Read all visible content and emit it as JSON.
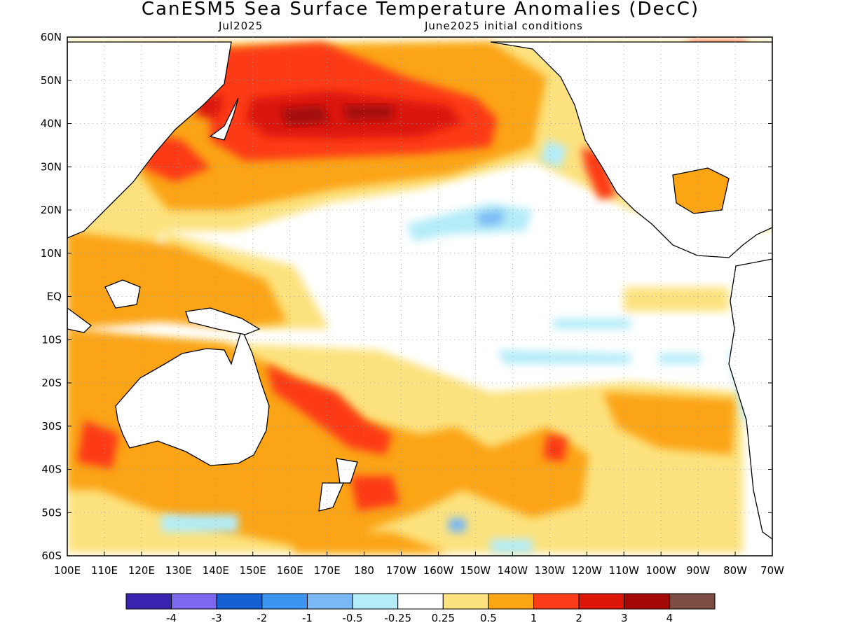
{
  "title": "CanESM5 Sea Surface Temperature Anomalies (DecC)",
  "subtitle_left": "Jul2025",
  "subtitle_right": "June2025 initial conditions",
  "lat_labels": [
    "60N",
    "50N",
    "40N",
    "30N",
    "20N",
    "10N",
    "EQ",
    "10S",
    "20S",
    "30S",
    "40S",
    "50S",
    "60S"
  ],
  "lon_labels": [
    "100E",
    "110E",
    "120E",
    "130E",
    "140E",
    "150E",
    "160E",
    "170E",
    "180",
    "170W",
    "160W",
    "150W",
    "140W",
    "130W",
    "120W",
    "110W",
    "100W",
    "90W",
    "80W",
    "70W"
  ],
  "colorbar": {
    "colors": [
      "#3a22b0",
      "#7b68ee",
      "#1560d0",
      "#3c95f0",
      "#78b8f5",
      "#b4ecf8",
      "#ffffff",
      "#fce27e",
      "#fba414",
      "#fc3b18",
      "#db1508",
      "#a30807",
      "#7b4c42"
    ],
    "labels": [
      "-4",
      "-3",
      "-2",
      "-1",
      "-0.5",
      "-0.25",
      "0.25",
      "0.5",
      "1",
      "2",
      "3",
      "4"
    ]
  }
}
